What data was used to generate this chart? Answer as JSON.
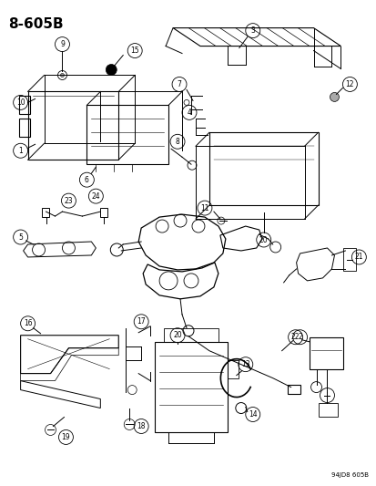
{
  "title": "8-605B",
  "footer": "94JD8 605B",
  "bg_color": "#ffffff",
  "fig_width": 4.14,
  "fig_height": 5.33,
  "dpi": 100
}
